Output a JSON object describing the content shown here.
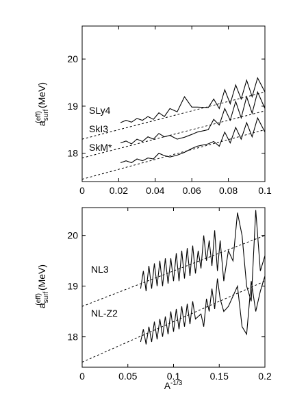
{
  "chart_data": [
    {
      "type": "line",
      "panel": "top",
      "xlim": [
        0,
        0.1
      ],
      "ylim": [
        17.4,
        20.7
      ],
      "xticks": [
        0,
        0.02,
        0.04,
        0.06,
        0.08,
        0.1
      ],
      "xtick_labels": [
        "0",
        "0.02",
        "0.04",
        "0.06",
        "0.08",
        "0.1"
      ],
      "yticks": [
        18,
        19,
        20
      ],
      "ytick_labels": [
        "18",
        "19",
        "20"
      ],
      "xlabel": "",
      "ylabel": "a_surf^(eff) (MeV)",
      "ylabel_main": "a",
      "ylabel_sup": "(eff)",
      "ylabel_sub": "surf",
      "ylabel_unit": "(MeV)",
      "grid": false,
      "series": [
        {
          "name": "SLy4",
          "style": "solid",
          "x": [
            0.021,
            0.024,
            0.027,
            0.03,
            0.033,
            0.036,
            0.039,
            0.042,
            0.045,
            0.048,
            0.052,
            0.056,
            0.06,
            0.063,
            0.069,
            0.072,
            0.075,
            0.078,
            0.081,
            0.084,
            0.087,
            0.09,
            0.093,
            0.096,
            0.1
          ],
          "y": [
            18.65,
            18.7,
            18.66,
            18.74,
            18.7,
            18.78,
            18.72,
            18.86,
            18.78,
            18.95,
            18.88,
            19.2,
            18.98,
            18.98,
            18.97,
            19.15,
            18.95,
            19.35,
            19.05,
            19.45,
            19.15,
            19.55,
            19.2,
            19.6,
            19.3
          ]
        },
        {
          "name": "SkI3",
          "style": "solid",
          "x": [
            0.021,
            0.024,
            0.027,
            0.03,
            0.033,
            0.036,
            0.039,
            0.042,
            0.045,
            0.048,
            0.052,
            0.056,
            0.06,
            0.063,
            0.069,
            0.072,
            0.075,
            0.078,
            0.081,
            0.084,
            0.087,
            0.09,
            0.093,
            0.096,
            0.1
          ],
          "y": [
            18.22,
            18.26,
            18.2,
            18.3,
            18.25,
            18.35,
            18.3,
            18.42,
            18.35,
            18.38,
            18.3,
            18.34,
            18.4,
            18.45,
            18.5,
            18.72,
            18.6,
            18.95,
            18.7,
            19.1,
            18.75,
            19.2,
            18.85,
            19.3,
            18.95
          ]
        },
        {
          "name": "SkM*",
          "style": "solid",
          "x": [
            0.021,
            0.024,
            0.027,
            0.03,
            0.033,
            0.036,
            0.039,
            0.042,
            0.045,
            0.048,
            0.052,
            0.056,
            0.06,
            0.063,
            0.069,
            0.072,
            0.075,
            0.078,
            0.081,
            0.084,
            0.087,
            0.09,
            0.093,
            0.096,
            0.1
          ],
          "y": [
            17.8,
            17.84,
            17.8,
            17.88,
            17.84,
            17.9,
            17.88,
            18.0,
            17.95,
            17.92,
            17.96,
            18.02,
            18.1,
            18.15,
            18.2,
            18.25,
            18.15,
            18.45,
            18.22,
            18.55,
            18.3,
            18.65,
            18.35,
            18.75,
            18.45
          ]
        },
        {
          "name": "SLy4 fit",
          "style": "dashed",
          "x": [
            0,
            0.1
          ],
          "y": [
            18.3,
            19.3
          ]
        },
        {
          "name": "SkI3 fit",
          "style": "dashed",
          "x": [
            0,
            0.1
          ],
          "y": [
            17.9,
            18.9
          ]
        },
        {
          "name": "SkM* fit",
          "style": "dashed",
          "x": [
            0,
            0.1
          ],
          "y": [
            17.45,
            18.5
          ]
        }
      ],
      "annotations": [
        "SLy4",
        "SkI3",
        "SkM*"
      ]
    },
    {
      "type": "line",
      "panel": "bottom",
      "xlim": [
        0,
        0.2
      ],
      "ylim": [
        17.4,
        20.55
      ],
      "xticks": [
        0,
        0.05,
        0.1,
        0.15,
        0.2
      ],
      "xtick_labels": [
        "0",
        "0.05",
        "0.1",
        "0.15",
        "0.2"
      ],
      "yticks": [
        18,
        19,
        20
      ],
      "ytick_labels": [
        "18",
        "19",
        "20"
      ],
      "xlabel": "A^(-1/3)",
      "xlabel_main": "A",
      "xlabel_sup": "-1/3",
      "ylabel": "a_surf^(eff) (MeV)",
      "ylabel_main": "a",
      "ylabel_sup": "(eff)",
      "ylabel_sub": "surf",
      "ylabel_unit": "(MeV)",
      "grid": false,
      "series": [
        {
          "name": "NL3",
          "style": "solid",
          "x": [
            0.064,
            0.067,
            0.07,
            0.073,
            0.076,
            0.079,
            0.082,
            0.085,
            0.088,
            0.091,
            0.094,
            0.097,
            0.1,
            0.103,
            0.106,
            0.109,
            0.112,
            0.115,
            0.118,
            0.121,
            0.124,
            0.127,
            0.13,
            0.133,
            0.136,
            0.139,
            0.142,
            0.145,
            0.148,
            0.151,
            0.155,
            0.16,
            0.165,
            0.17,
            0.175,
            0.18,
            0.185,
            0.19,
            0.195,
            0.2
          ],
          "y": [
            18.95,
            19.3,
            18.9,
            19.4,
            18.95,
            19.45,
            19.0,
            19.5,
            19.0,
            19.55,
            19.05,
            19.55,
            19.1,
            19.65,
            19.1,
            19.7,
            19.15,
            19.75,
            19.2,
            19.8,
            19.25,
            19.7,
            19.35,
            20.0,
            19.5,
            19.9,
            19.4,
            20.1,
            19.3,
            19.9,
            19.1,
            19.7,
            19.5,
            20.45,
            20.0,
            19.0,
            18.7,
            20.5,
            19.3,
            19.6
          ]
        },
        {
          "name": "NL-Z2",
          "style": "solid",
          "x": [
            0.064,
            0.067,
            0.07,
            0.073,
            0.076,
            0.079,
            0.082,
            0.085,
            0.088,
            0.091,
            0.094,
            0.097,
            0.1,
            0.103,
            0.106,
            0.109,
            0.112,
            0.115,
            0.118,
            0.121,
            0.124,
            0.127,
            0.13,
            0.133,
            0.136,
            0.139,
            0.142,
            0.145,
            0.148,
            0.151,
            0.155,
            0.16,
            0.165,
            0.17,
            0.175,
            0.18,
            0.185,
            0.19,
            0.195,
            0.2
          ],
          "y": [
            17.9,
            18.15,
            17.85,
            18.2,
            17.9,
            18.3,
            17.95,
            18.35,
            18.0,
            18.4,
            18.05,
            18.5,
            18.1,
            18.55,
            18.15,
            18.6,
            18.2,
            18.65,
            18.25,
            18.7,
            18.35,
            18.4,
            18.45,
            18.2,
            18.75,
            18.5,
            18.95,
            18.55,
            19.15,
            18.75,
            18.5,
            18.6,
            18.8,
            19.0,
            18.2,
            18.05,
            19.1,
            18.5,
            18.9,
            19.2
          ]
        },
        {
          "name": "NL3 fit",
          "style": "dashed",
          "x": [
            0,
            0.2
          ],
          "y": [
            18.6,
            20.0
          ]
        },
        {
          "name": "NL-Z2 fit",
          "style": "dashed",
          "x": [
            0,
            0.2
          ],
          "y": [
            17.5,
            19.1
          ]
        }
      ],
      "annotations": [
        "NL3",
        "NL-Z2"
      ]
    }
  ]
}
